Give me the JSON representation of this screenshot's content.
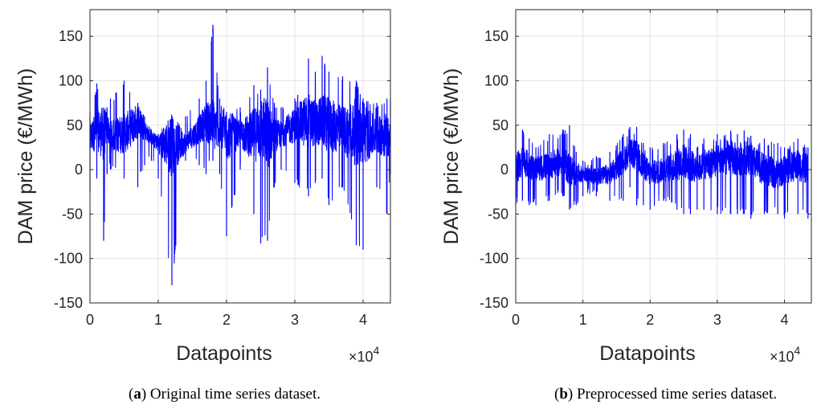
{
  "charts": [
    {
      "caption_letter": "a",
      "caption_text": ") Original time series dataset.",
      "caption_open": "("
    },
    {
      "caption_letter": "b",
      "caption_text": ") Preprocessed time series dataset.",
      "caption_open": "("
    }
  ],
  "chart_data": [
    {
      "type": "line",
      "title": "",
      "xlabel": "Datapoints",
      "ylabel": "DAM price (€/MWh)",
      "x_multiplier": "×10",
      "x_exponent": "4",
      "xlim": [
        0,
        4.4
      ],
      "ylim": [
        -150,
        180
      ],
      "xticks": [
        0,
        1,
        2,
        3,
        4
      ],
      "yticks": [
        -150,
        -100,
        -50,
        0,
        50,
        100,
        150
      ],
      "grid": true,
      "color": "#0000ff",
      "series": [
        {
          "x": [
            0,
            0.1,
            0.2,
            0.25,
            0.3,
            0.5,
            0.7,
            0.8,
            0.9,
            1.0,
            1.2,
            1.4,
            1.6,
            1.7,
            1.8,
            1.9,
            2.0,
            2.2,
            2.4,
            2.5,
            2.6,
            2.7,
            2.8,
            3.0,
            3.2,
            3.3,
            3.4,
            3.5,
            3.7,
            3.9,
            4.0,
            4.2,
            4.35,
            4.4
          ],
          "y": [
            35,
            45,
            40,
            50,
            38,
            40,
            55,
            45,
            35,
            30,
            28,
            30,
            45,
            55,
            50,
            45,
            38,
            40,
            38,
            48,
            40,
            38,
            40,
            50,
            55,
            52,
            55,
            50,
            45,
            42,
            40,
            38,
            40,
            35
          ],
          "max_envelope": [
            65,
            97,
            70,
            70,
            80,
            100,
            75,
            60,
            45,
            40,
            45,
            60,
            80,
            100,
            163,
            80,
            65,
            70,
            95,
            90,
            115,
            75,
            70,
            80,
            125,
            110,
            128,
            110,
            105,
            100,
            80,
            75,
            80,
            80
          ],
          "min_envelope": [
            -25,
            -10,
            -80,
            -5,
            0,
            -10,
            -20,
            5,
            10,
            -10,
            -130,
            10,
            5,
            -5,
            10,
            -5,
            -75,
            0,
            -50,
            -83,
            -80,
            -20,
            0,
            -15,
            -30,
            -15,
            -10,
            -40,
            -20,
            -85,
            -90,
            -20,
            -50,
            -5
          ]
        }
      ]
    },
    {
      "type": "line",
      "title": "",
      "xlabel": "Datapoints",
      "ylabel": "DAM price (€/MWh)",
      "x_multiplier": "×10",
      "x_exponent": "4",
      "xlim": [
        0,
        4.4
      ],
      "ylim": [
        -150,
        180
      ],
      "xticks": [
        0,
        1,
        2,
        3,
        4
      ],
      "yticks": [
        -150,
        -100,
        -50,
        0,
        50,
        100,
        150
      ],
      "grid": true,
      "color": "#0000ff",
      "series": [
        {
          "x": [
            0,
            0.1,
            0.2,
            0.3,
            0.5,
            0.7,
            0.8,
            0.9,
            1.0,
            1.2,
            1.4,
            1.6,
            1.7,
            1.8,
            1.9,
            2.0,
            2.2,
            2.4,
            2.5,
            2.6,
            2.7,
            2.8,
            3.0,
            3.2,
            3.3,
            3.4,
            3.5,
            3.7,
            3.9,
            4.0,
            4.2,
            4.35
          ],
          "y": [
            0,
            10,
            5,
            0,
            5,
            10,
            0,
            -5,
            -5,
            -8,
            -5,
            10,
            20,
            15,
            5,
            -5,
            0,
            5,
            10,
            5,
            0,
            5,
            10,
            15,
            10,
            15,
            10,
            0,
            -5,
            0,
            5,
            0
          ],
          "max_envelope": [
            50,
            45,
            35,
            25,
            40,
            45,
            50,
            20,
            10,
            15,
            20,
            40,
            48,
            48,
            30,
            25,
            30,
            40,
            45,
            40,
            25,
            35,
            40,
            44,
            40,
            44,
            38,
            35,
            30,
            25,
            35,
            25
          ],
          "min_envelope": [
            -40,
            -35,
            -40,
            -40,
            -35,
            -30,
            -45,
            -40,
            -30,
            -30,
            -35,
            -35,
            -20,
            -40,
            -40,
            -45,
            -35,
            -45,
            -50,
            -50,
            -45,
            -45,
            -50,
            -50,
            -50,
            -50,
            -55,
            -50,
            -50,
            -55,
            -50,
            -55
          ]
        }
      ]
    }
  ]
}
